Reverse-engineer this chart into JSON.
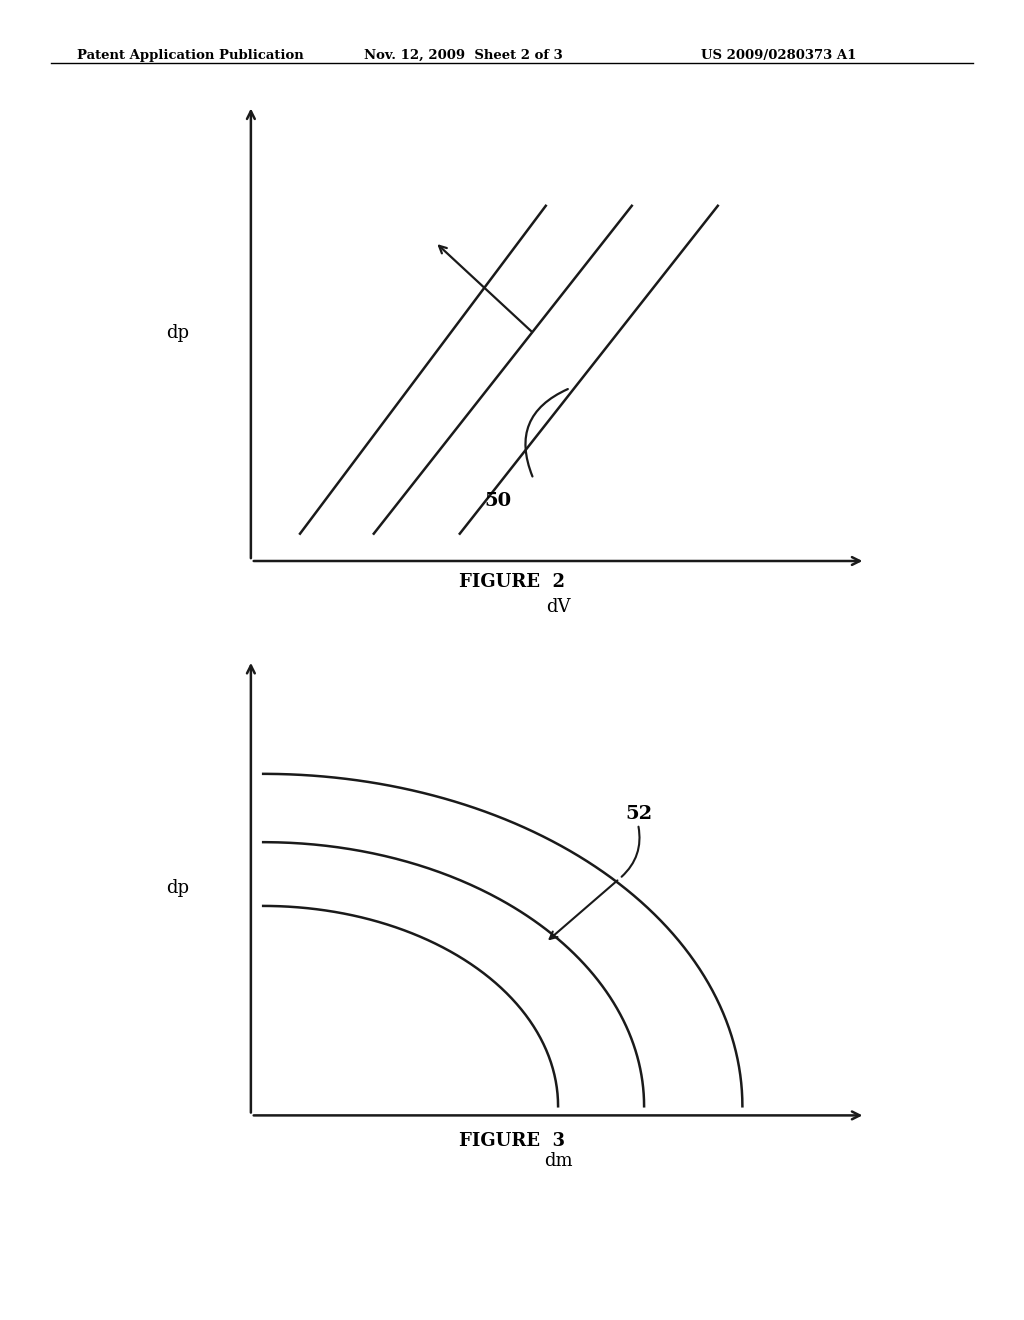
{
  "header_left": "Patent Application Publication",
  "header_mid": "Nov. 12, 2009  Sheet 2 of 3",
  "header_right": "US 2009/0280373 A1",
  "fig2_label": "FIGURE  2",
  "fig3_label": "FIGURE  3",
  "fig2_xlabel": "dV",
  "fig2_ylabel": "dp",
  "fig3_xlabel": "dm",
  "fig3_ylabel": "dp",
  "fig2_ref": "50",
  "fig3_ref": "52",
  "background_color": "#ffffff",
  "line_color": "#1a1a1a",
  "text_color": "#000000"
}
